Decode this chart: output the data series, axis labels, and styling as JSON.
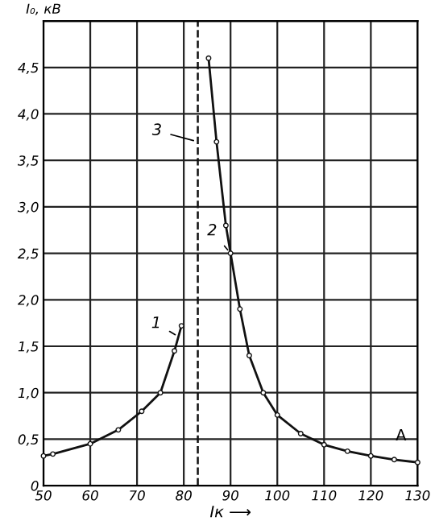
{
  "chart_data": {
    "type": "line",
    "xlabel": "Iк ⟶",
    "ylabel": "I₀, кВ",
    "series": [
      {
        "color": "#111111",
        "x": [
          50,
          52,
          60,
          66,
          71,
          75,
          78,
          79.5
        ],
        "values": [
          0.32,
          0.34,
          0.45,
          0.6,
          0.8,
          1.0,
          1.45,
          1.72
        ]
      },
      {
        "color": "#111111",
        "x": [
          85.3,
          87,
          89,
          90,
          92,
          94,
          97,
          100,
          105,
          110,
          115,
          120,
          125,
          130
        ],
        "values": [
          4.6,
          3.7,
          2.8,
          2.5,
          1.9,
          1.4,
          1.0,
          0.76,
          0.56,
          0.44,
          0.37,
          0.32,
          0.28,
          0.25
        ]
      }
    ],
    "ref_lines": [
      {
        "axis": "x",
        "value": 83,
        "line_style": "dashed",
        "color": "#111111"
      }
    ],
    "annotations": [
      {
        "text": "1",
        "x": 79,
        "y": 1.6
      },
      {
        "text": "2",
        "x": 90,
        "y": 2.5
      },
      {
        "text": "3",
        "x": 83,
        "y": 3.7
      },
      "A"
    ],
    "xlim": [
      50,
      130
    ],
    "ylim": [
      0,
      5
    ],
    "xticks": [
      50,
      60,
      70,
      80,
      90,
      100,
      110,
      120,
      130
    ],
    "yticks": [
      0,
      {
        "value": 0.5,
        "label": "0,5"
      },
      {
        "value": 1,
        "label": "1,0"
      },
      {
        "value": 1.5,
        "label": "1,5"
      },
      {
        "value": 2,
        "label": "2,0"
      },
      {
        "value": 2.5,
        "label": "2,5"
      },
      {
        "value": 3,
        "label": "3,0"
      },
      {
        "value": 3.5,
        "label": "3,5"
      },
      {
        "value": 4,
        "label": "4,0"
      },
      {
        "value": 4.5,
        "label": "4,5"
      },
      {
        "value": 5,
        "label": null
      }
    ],
    "grid": true,
    "marker": "circle",
    "line_style": "solid"
  }
}
